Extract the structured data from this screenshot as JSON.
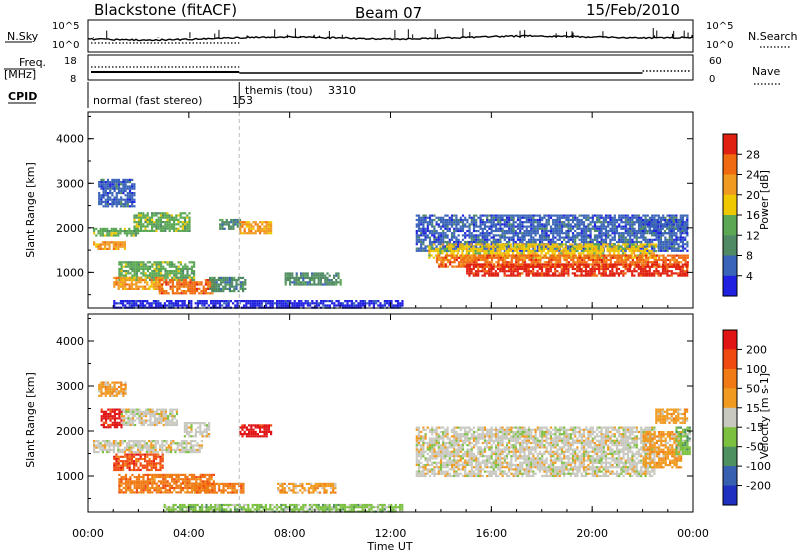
{
  "header": {
    "radar": "Blackstone (fitACF)",
    "beam": "Beam 07",
    "date": "15/Feb/2010"
  },
  "top_panels": {
    "nsky_label": "N.Sky",
    "nsky_ticks": [
      "10^5",
      "10^0"
    ],
    "nsearch_label": "N.Search",
    "nsearch_ticks": [
      "10^5",
      "10^0"
    ],
    "freq_label": "Freq.",
    "freq_unit": "[MHz]",
    "freq_ticks": [
      "18",
      "8"
    ],
    "nave_label": "Nave",
    "nave_ticks": [
      "60",
      "0"
    ],
    "cpid_label": "CPID"
  },
  "cpid_segments": [
    {
      "name": "normal (fast stereo)",
      "id": "153",
      "start_hour": 0
    },
    {
      "name": "themis (tou)",
      "id": "3310",
      "start_hour": 6
    }
  ],
  "axes": {
    "xlabel": "Time UT",
    "x_ticks": [
      "00:00",
      "04:00",
      "08:00",
      "12:00",
      "16:00",
      "20:00",
      "00:00"
    ],
    "x_range_hours": [
      0,
      24
    ],
    "ylabel": "Slant Range [km]",
    "y_ticks": [
      "1000",
      "2000",
      "3000",
      "4000"
    ],
    "y_range_km": [
      200,
      4600
    ]
  },
  "colors": {
    "power": [
      "#2020e0",
      "#3a64b8",
      "#4f8a64",
      "#5aa854",
      "#f0c800",
      "#f09b20",
      "#f06a10",
      "#e02010"
    ],
    "velocity": [
      "#e01414",
      "#f04a10",
      "#f07a14",
      "#f09b20",
      "#c8c8c0",
      "#7cc040",
      "#4e9060",
      "#3860b0",
      "#2030c0"
    ]
  },
  "chart_data": [
    {
      "type": "heatmap",
      "title": "Power",
      "colorbar_label": "Power [dB]",
      "colorbar_ticks": [
        "4",
        "8",
        "12",
        "16",
        "20",
        "24",
        "28"
      ],
      "colorbar_range": [
        0,
        32
      ],
      "x_unit": "hours UT",
      "y_unit": "km",
      "regions": [
        {
          "t": [
            0.4,
            1.8
          ],
          "r": [
            2500,
            3100
          ],
          "level": 1
        },
        {
          "t": [
            0.2,
            2.0
          ],
          "r": [
            1850,
            2000
          ],
          "level": 3
        },
        {
          "t": [
            0.2,
            1.5
          ],
          "r": [
            1550,
            1700
          ],
          "level": 5
        },
        {
          "t": [
            1.8,
            4.0
          ],
          "r": [
            1950,
            2350
          ],
          "level": 3
        },
        {
          "t": [
            1.2,
            4.2
          ],
          "r": [
            850,
            1250
          ],
          "level": 3
        },
        {
          "t": [
            1.0,
            3.0
          ],
          "r": [
            650,
            900
          ],
          "level": 5
        },
        {
          "t": [
            2.8,
            5.0
          ],
          "r": [
            550,
            850
          ],
          "level": 6
        },
        {
          "t": [
            4.8,
            6.2
          ],
          "r": [
            600,
            900
          ],
          "level": 2
        },
        {
          "t": [
            5.2,
            6.0
          ],
          "r": [
            2000,
            2200
          ],
          "level": 2
        },
        {
          "t": [
            6.0,
            7.3
          ],
          "r": [
            1900,
            2150
          ],
          "level": 5
        },
        {
          "t": [
            7.8,
            10.0
          ],
          "r": [
            750,
            1000
          ],
          "level": 2
        },
        {
          "t": [
            1.0,
            12.5
          ],
          "r": [
            220,
            380
          ],
          "level": 0
        },
        {
          "t": [
            13.0,
            23.8
          ],
          "r": [
            1500,
            2300
          ],
          "level": 1
        },
        {
          "t": [
            13.5,
            22.5
          ],
          "r": [
            1350,
            1650
          ],
          "level": 4
        },
        {
          "t": [
            13.8,
            23.8
          ],
          "r": [
            1150,
            1400
          ],
          "level": 6
        },
        {
          "t": [
            15.0,
            23.8
          ],
          "r": [
            950,
            1200
          ],
          "level": 7
        },
        {
          "t": [
            21.8,
            23.8
          ],
          "r": [
            1900,
            2200
          ],
          "level": 1
        }
      ]
    },
    {
      "type": "heatmap",
      "title": "Velocity",
      "colorbar_label": "Velocity [m s-1]",
      "colorbar_ticks": [
        "200",
        "100",
        "50",
        "15",
        "-15",
        "-50",
        "-100",
        "-200"
      ],
      "colorbar_range": [
        -250,
        250
      ],
      "x_unit": "hours UT",
      "y_unit": "km",
      "regions": [
        {
          "t": [
            0.4,
            1.5
          ],
          "r": [
            2800,
            3100
          ],
          "level": 3
        },
        {
          "t": [
            0.5,
            1.3
          ],
          "r": [
            2100,
            2500
          ],
          "level": 0
        },
        {
          "t": [
            1.3,
            3.5
          ],
          "r": [
            2150,
            2500
          ],
          "level": 4
        },
        {
          "t": [
            3.8,
            4.8
          ],
          "r": [
            1900,
            2200
          ],
          "level": 4
        },
        {
          "t": [
            0.2,
            4.5
          ],
          "r": [
            1550,
            1800
          ],
          "level": 4
        },
        {
          "t": [
            1.0,
            3.0
          ],
          "r": [
            1150,
            1500
          ],
          "level": 1
        },
        {
          "t": [
            1.2,
            5.0
          ],
          "r": [
            650,
            1050
          ],
          "level": 2
        },
        {
          "t": [
            4.2,
            6.2
          ],
          "r": [
            650,
            850
          ],
          "level": 2
        },
        {
          "t": [
            6.0,
            7.3
          ],
          "r": [
            1900,
            2150
          ],
          "level": 0
        },
        {
          "t": [
            7.5,
            9.8
          ],
          "r": [
            650,
            850
          ],
          "level": 3
        },
        {
          "t": [
            3.0,
            12.5
          ],
          "r": [
            220,
            380
          ],
          "level": 5
        },
        {
          "t": [
            13.0,
            22.5
          ],
          "r": [
            1000,
            2100
          ],
          "level": 4
        },
        {
          "t": [
            22.0,
            23.5
          ],
          "r": [
            1200,
            2000
          ],
          "level": 3
        },
        {
          "t": [
            22.5,
            23.8
          ],
          "r": [
            2200,
            2500
          ],
          "level": 3
        },
        {
          "t": [
            23.3,
            23.9
          ],
          "r": [
            1500,
            2100
          ],
          "level": 5
        }
      ]
    }
  ]
}
